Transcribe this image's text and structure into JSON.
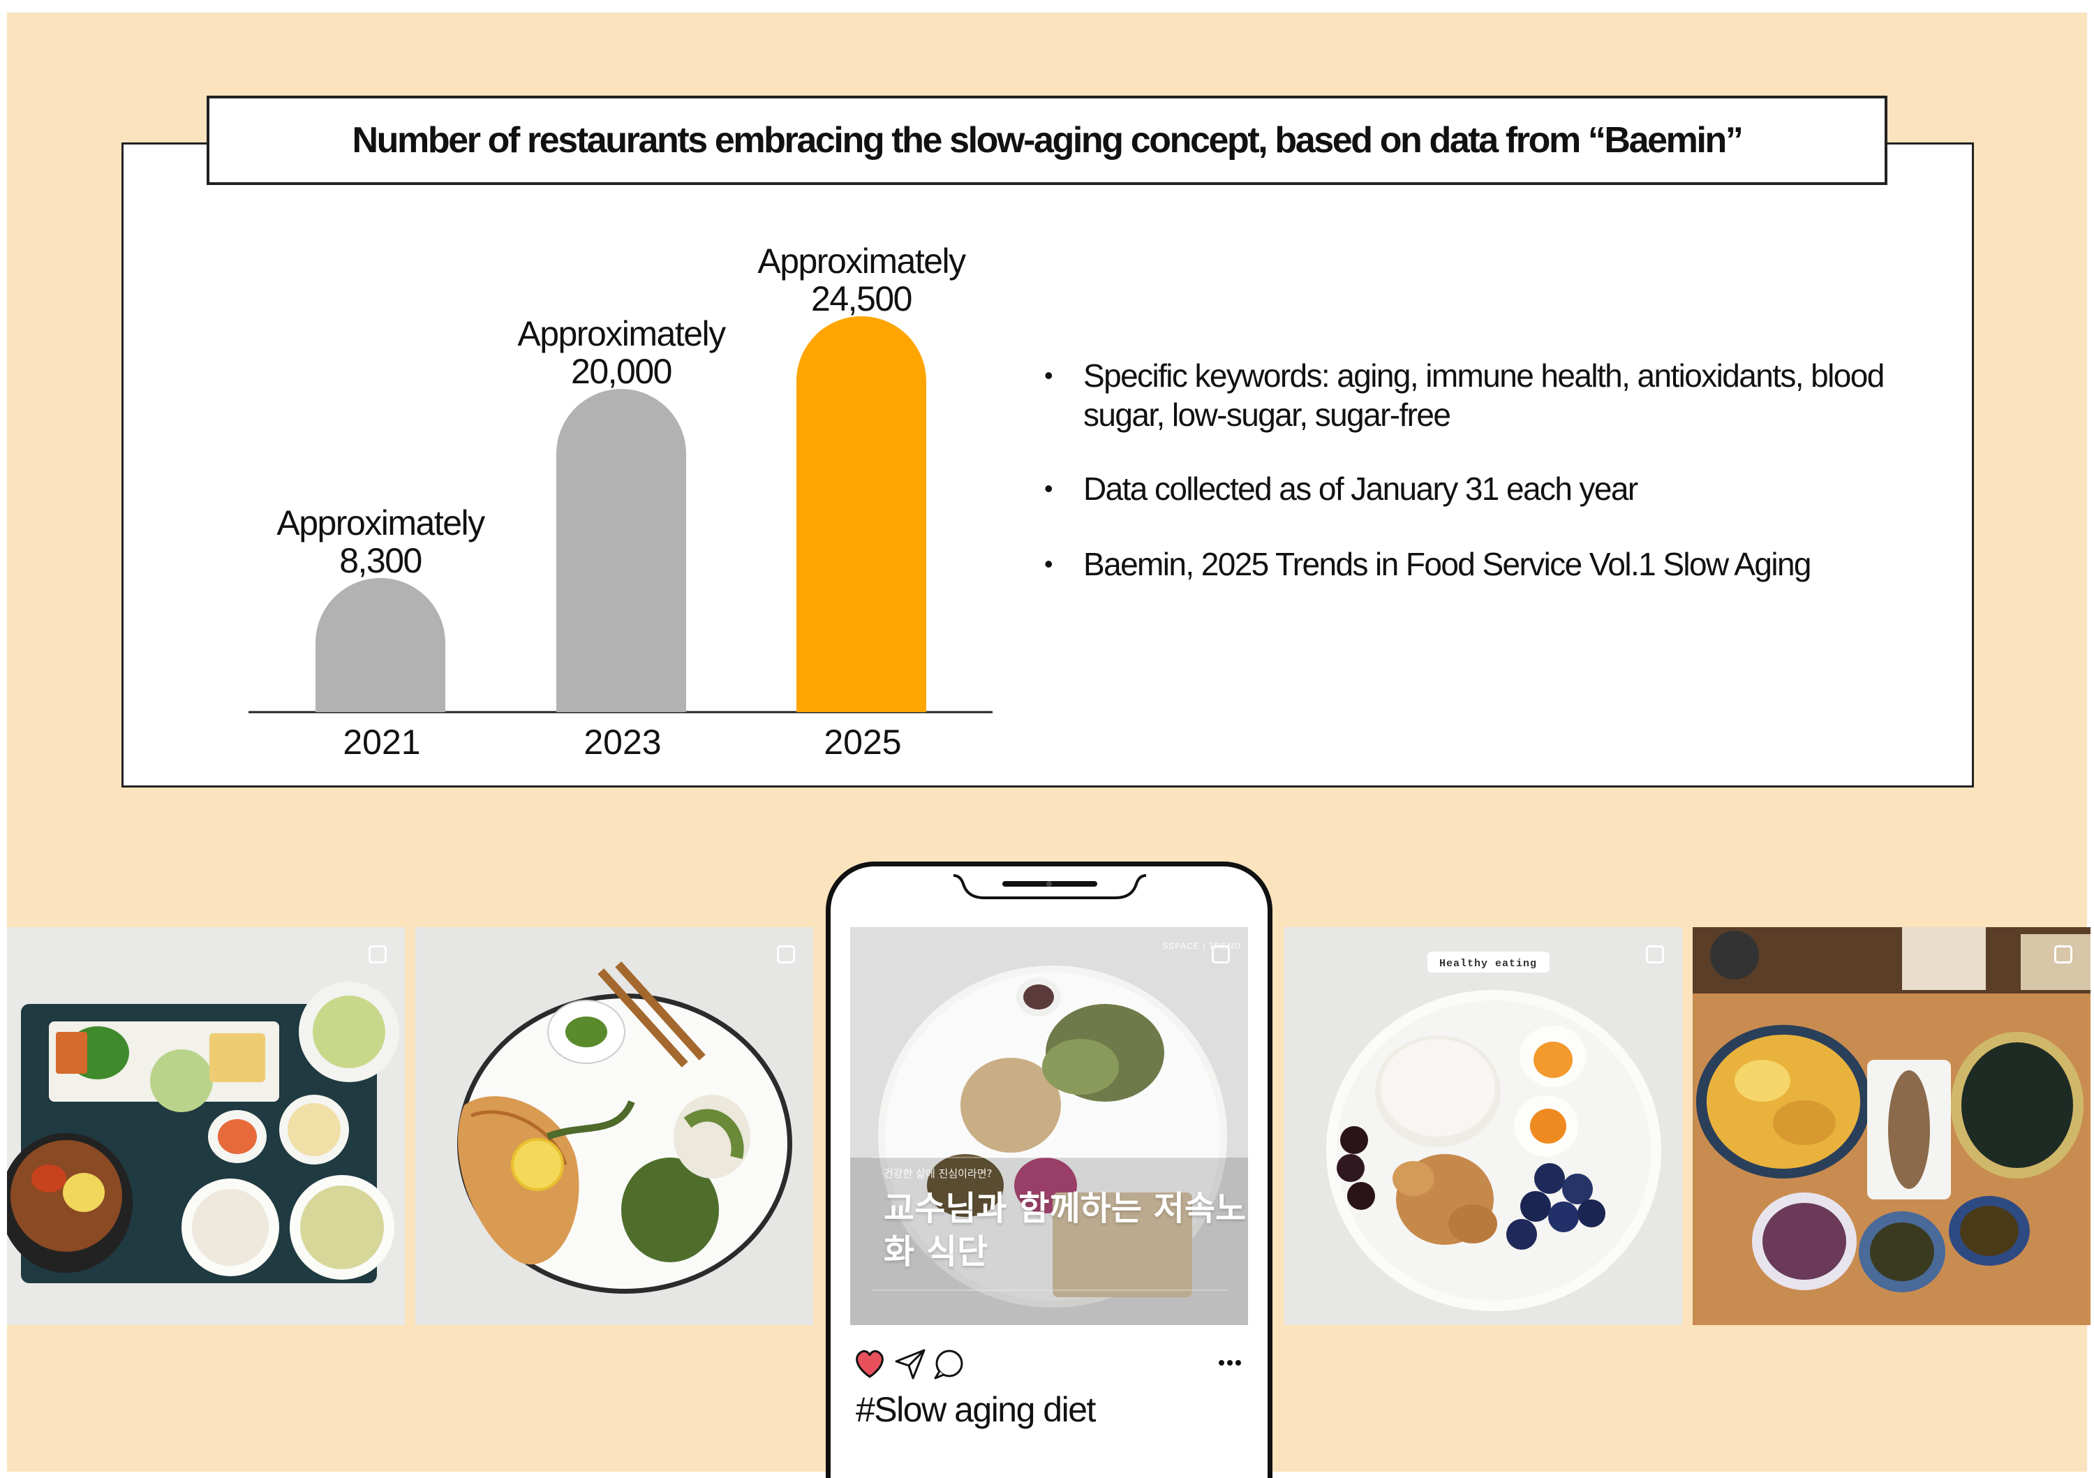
{
  "title": "Number of restaurants embracing the slow-aging concept, based on data from “Baemin”",
  "chart_data": {
    "type": "bar",
    "title": "Number of restaurants embracing the slow-aging concept, based on data from “Baemin”",
    "categories": [
      "2021",
      "2023",
      "2025"
    ],
    "values": [
      8300,
      20000,
      24500
    ],
    "labels": [
      {
        "line1": "Approximately",
        "line2": "8,300"
      },
      {
        "line1": "Approximately",
        "line2": "20,000"
      },
      {
        "line1": "Approximately",
        "line2": "24,500"
      }
    ],
    "colors": [
      "#b2b2b2",
      "#b2b2b2",
      "#fea500"
    ],
    "xlabel": "",
    "ylabel": "",
    "grid": false
  },
  "notes": [
    "Specific keywords: aging, immune health, antioxidants, blood sugar, low-sugar, sugar-free",
    "Data collected as of January 31 each year",
    "Baemin, 2025 Trends in Food Service Vol.1 Slow Aging"
  ],
  "post": {
    "brand": "SSPACE | TREND",
    "subtitle": "건강한 삶에 진심이라면?",
    "korean_title": "교수님과 함께하는 저속노화 식단",
    "hashtag": "#Slow aging diet",
    "icons": [
      "heart-icon",
      "send-icon",
      "comment-icon",
      "more-icon"
    ]
  },
  "photo_captions": {
    "healthy_eating": "Healthy eating"
  },
  "colors": {
    "background": "#fbe3bd",
    "highlight_bar": "#fea500",
    "grey_bar": "#b2b2b2",
    "heart": "#e8505b"
  }
}
